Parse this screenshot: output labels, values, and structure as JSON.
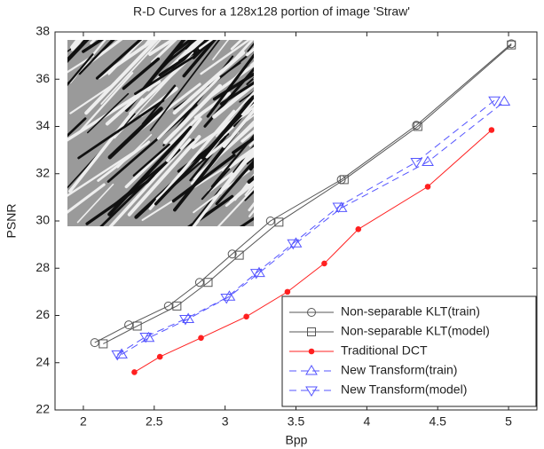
{
  "chart_data": {
    "type": "line",
    "title": "R-D Curves for a 128x128 portion of image 'Straw'",
    "x_label": "Bpp",
    "y_label": "PSNR",
    "xlim": [
      1.8,
      5.2
    ],
    "ylim": [
      22,
      38
    ],
    "xticks": [
      2,
      2.5,
      3,
      3.5,
      4,
      4.5,
      5
    ],
    "yticks": [
      22,
      24,
      26,
      28,
      30,
      32,
      34,
      36,
      38
    ],
    "legend": "lower right",
    "series": [
      {
        "name": "Non-separable KLT(train)",
        "color": "#555555",
        "marker": "circle",
        "dash": "solid",
        "x": [
          2.08,
          2.32,
          2.6,
          2.82,
          3.05,
          3.32,
          3.82,
          4.35,
          5.02
        ],
        "values": [
          24.85,
          25.6,
          26.4,
          27.4,
          28.6,
          30.0,
          31.75,
          34.05,
          37.5
        ]
      },
      {
        "name": "Non-separable KLT(model)",
        "color": "#555555",
        "marker": "square",
        "dash": "solid",
        "x": [
          2.14,
          2.38,
          2.66,
          2.88,
          3.1,
          3.38,
          3.84,
          4.36,
          5.02
        ],
        "values": [
          24.8,
          25.55,
          26.4,
          27.4,
          28.55,
          29.95,
          31.75,
          34.0,
          37.45
        ]
      },
      {
        "name": "Traditional DCT",
        "color": "#ff2020",
        "marker": "dot",
        "dash": "solid",
        "x": [
          2.36,
          2.54,
          2.83,
          3.15,
          3.44,
          3.7,
          3.94,
          4.43,
          4.88
        ],
        "values": [
          23.6,
          24.25,
          25.05,
          25.95,
          27.0,
          28.2,
          29.65,
          31.45,
          33.85
        ]
      },
      {
        "name": "New Transform(train)",
        "color": "#5555ff",
        "marker": "triangle-up",
        "dash": "dashed",
        "x": [
          2.27,
          2.46,
          2.74,
          3.03,
          3.24,
          3.5,
          3.82,
          4.43,
          4.97
        ],
        "values": [
          24.35,
          25.05,
          25.85,
          26.8,
          27.8,
          29.05,
          30.55,
          32.5,
          35.05
        ]
      },
      {
        "name": "New Transform(model)",
        "color": "#5555ff",
        "marker": "triangle-down",
        "dash": "dashed",
        "x": [
          2.24,
          2.44,
          2.72,
          3.01,
          3.22,
          3.48,
          3.8,
          4.35,
          4.9
        ],
        "values": [
          24.35,
          25.1,
          25.85,
          26.75,
          27.8,
          29.05,
          30.6,
          32.5,
          35.1
        ]
      }
    ]
  }
}
